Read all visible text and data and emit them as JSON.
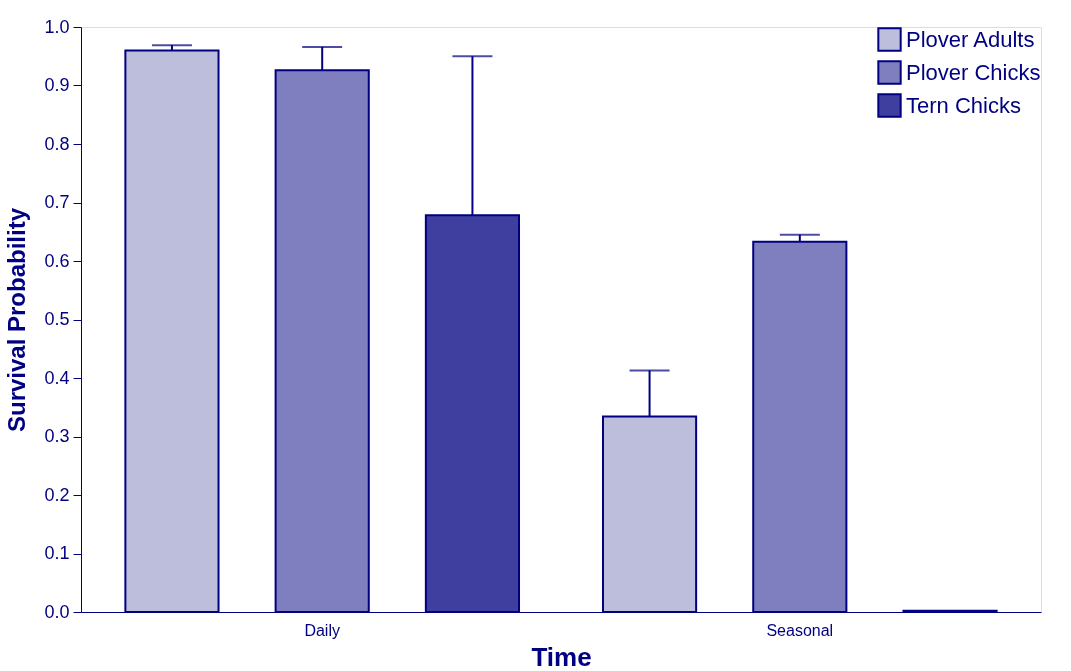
{
  "chart_data": {
    "type": "bar",
    "xlabel": "Time",
    "ylabel": "Survival Probability",
    "categories": [
      "Daily",
      "Seasonal"
    ],
    "series": [
      {
        "name": "Plover Adults",
        "color": "#bdbddc",
        "values": [
          0.96,
          0.334
        ],
        "errors": [
          [
            0.96,
            0.969
          ],
          [
            0.334,
            0.413
          ]
        ]
      },
      {
        "name": "Plover Chicks",
        "color": "#7f7fbf",
        "values": [
          0.926,
          0.633
        ],
        "errors": [
          [
            0.926,
            0.966
          ],
          [
            0.633,
            0.645
          ]
        ]
      },
      {
        "name": "Tern Chicks",
        "color": "#3f3f9f",
        "values": [
          0.678,
          0.002
        ],
        "errors": [
          [
            0.678,
            0.95
          ],
          null
        ]
      }
    ],
    "ylim": [
      0,
      1.0
    ],
    "yticks": [
      {
        "value": 0,
        "label": "0.0"
      },
      0.1,
      0.2,
      0.3,
      0.4,
      0.5,
      0.6,
      0.7,
      0.8,
      0.9,
      {
        "value": 1,
        "label": "1.0"
      }
    ],
    "grid": false,
    "legend": "top right"
  }
}
